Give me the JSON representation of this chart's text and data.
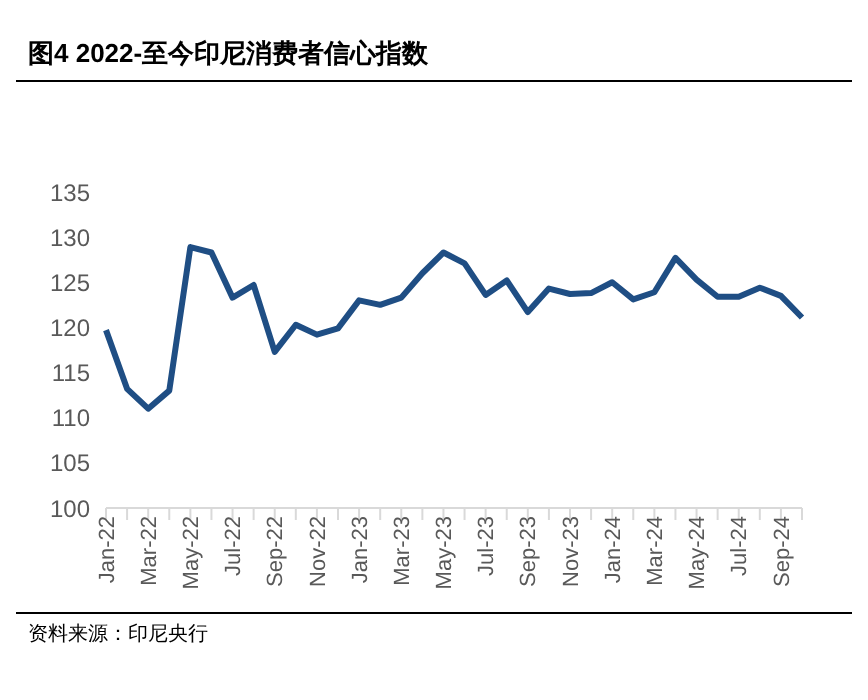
{
  "chart_data": {
    "type": "line",
    "title": "图4   2022-至今印尼消费者信心指数",
    "categories": [
      "Jan-22",
      null,
      "Mar-22",
      null,
      "May-22",
      null,
      "Jul-22",
      null,
      "Sep-22",
      null,
      "Nov-22",
      null,
      "Jan-23",
      null,
      "Mar-23",
      null,
      "May-23",
      null,
      "Jul-23",
      null,
      "Sep-23",
      null,
      "Nov-23",
      null,
      "Jan-24",
      null,
      "Mar-24",
      null,
      "May-24",
      null,
      "Jul-24",
      null,
      "Sep-24",
      null
    ],
    "series": [
      {
        "color": "#1f4e84",
        "values": [
          119.7,
          113.2,
          111.0,
          113.0,
          128.9,
          128.3,
          123.3,
          124.7,
          117.3,
          120.3,
          119.2,
          119.9,
          123.0,
          122.5,
          123.3,
          126.0,
          128.3,
          127.1,
          123.6,
          125.2,
          121.7,
          124.3,
          123.7,
          123.8,
          125.0,
          123.1,
          123.9,
          127.7,
          125.3,
          123.4,
          123.4,
          124.4,
          123.5,
          121.1
        ]
      }
    ],
    "ylim": [
      100,
      135
    ],
    "yticks": [
      100,
      105,
      110,
      115,
      120,
      125,
      130,
      135
    ],
    "grid": false,
    "legend": false,
    "marker": "none",
    "line_style": "solid",
    "annotations": [
      "资料来源：印尼央行"
    ]
  }
}
